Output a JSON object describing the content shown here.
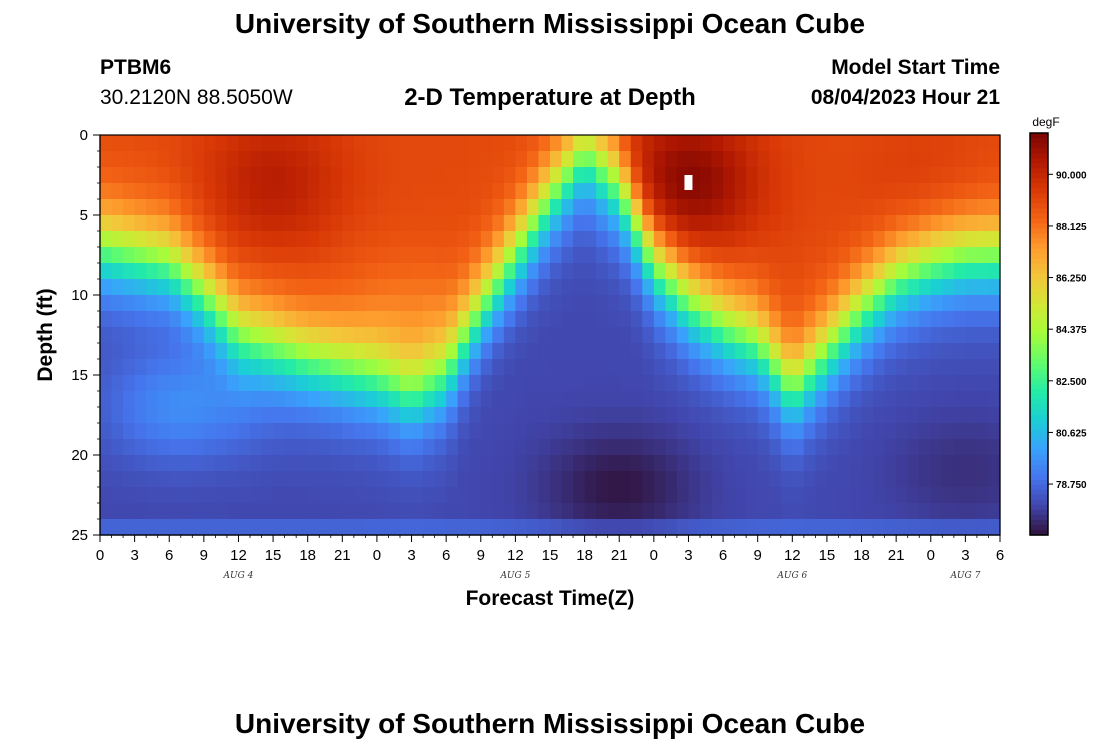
{
  "page": {
    "title": "University of Southern Mississippi Ocean Cube",
    "station": "PTBM6",
    "coordinates": "30.2120N  88.5050W",
    "subtitle": "2-D Temperature at Depth",
    "model_start_label": "Model Start Time",
    "model_start_value": "08/04/2023 Hour 21",
    "footer_title": "University of Southern Mississippi Ocean Cube"
  },
  "chart_data": {
    "type": "heatmap",
    "title": "2-D Temperature at Depth",
    "xlabel": "Forecast Time(Z)",
    "ylabel": "Depth (ft)",
    "x_range_hours": [
      0,
      78
    ],
    "x_ticks": [
      "0",
      "3",
      "6",
      "9",
      "12",
      "15",
      "18",
      "21",
      "0",
      "3",
      "6",
      "9",
      "12",
      "15",
      "18",
      "21",
      "0",
      "3",
      "6",
      "9",
      "12",
      "15",
      "18",
      "21",
      "0",
      "3",
      "6"
    ],
    "x_tick_hours": [
      0,
      3,
      6,
      9,
      12,
      15,
      18,
      21,
      24,
      27,
      30,
      33,
      36,
      39,
      42,
      45,
      48,
      51,
      54,
      57,
      60,
      63,
      66,
      69,
      72,
      75,
      78
    ],
    "date_labels": [
      {
        "label": "AUG 4",
        "hour": 12
      },
      {
        "label": "AUG 5",
        "hour": 36
      },
      {
        "label": "AUG 6",
        "hour": 60
      },
      {
        "label": "AUG 7",
        "hour": 75
      }
    ],
    "y_range_ft": [
      0,
      25
    ],
    "y_ticks": [
      "0",
      "5",
      "10",
      "15",
      "20",
      "25"
    ],
    "y_tick_values": [
      0,
      5,
      10,
      15,
      20,
      25
    ],
    "colorbar": {
      "unit": "degF",
      "range": [
        76.9,
        91.5
      ],
      "ticks": [
        "90.000",
        "88.125",
        "86.250",
        "84.375",
        "82.500",
        "80.625",
        "78.750"
      ],
      "tick_values": [
        90.0,
        88.125,
        86.25,
        84.375,
        82.5,
        80.625,
        78.75
      ],
      "colors": [
        "#30123b",
        "#4145ab",
        "#4675ed",
        "#39a2fc",
        "#1bcfd4",
        "#24eca6",
        "#61fc6c",
        "#a4fc3b",
        "#d1e834",
        "#f3c63a",
        "#fe9b2d",
        "#f36315",
        "#d93806",
        "#b11901",
        "#7a0402"
      ]
    },
    "thermocline_depth_ft_by_hour": [
      {
        "hour": 0,
        "depth_ft": 7
      },
      {
        "hour": 3,
        "depth_ft": 7.5
      },
      {
        "hour": 6,
        "depth_ft": 8
      },
      {
        "hour": 9,
        "depth_ft": 10
      },
      {
        "hour": 12,
        "depth_ft": 12.5
      },
      {
        "hour": 18,
        "depth_ft": 14
      },
      {
        "hour": 24,
        "depth_ft": 15.2
      },
      {
        "hour": 27,
        "depth_ft": 16.2
      },
      {
        "hour": 30,
        "depth_ft": 15
      },
      {
        "hour": 33,
        "depth_ft": 11
      },
      {
        "hour": 36,
        "depth_ft": 7.5
      },
      {
        "hour": 39,
        "depth_ft": 4
      },
      {
        "hour": 42,
        "depth_ft": 1
      },
      {
        "hour": 45,
        "depth_ft": 3
      },
      {
        "hour": 48,
        "depth_ft": 8
      },
      {
        "hour": 51,
        "depth_ft": 10.5
      },
      {
        "hour": 54,
        "depth_ft": 12
      },
      {
        "hour": 57,
        "depth_ft": 13
      },
      {
        "hour": 60,
        "depth_ft": 16
      },
      {
        "hour": 63,
        "depth_ft": 13.5
      },
      {
        "hour": 66,
        "depth_ft": 11
      },
      {
        "hour": 69,
        "depth_ft": 9
      },
      {
        "hour": 72,
        "depth_ft": 8
      },
      {
        "hour": 75,
        "depth_ft": 7.5
      },
      {
        "hour": 78,
        "depth_ft": 7.5
      }
    ],
    "warm_cores": [
      {
        "hour": 15,
        "depth_ft": 3,
        "temp_f": 90.3
      },
      {
        "hour": 27,
        "depth_ft": 12,
        "temp_f": 88.0
      },
      {
        "hour": 51,
        "depth_ft": 3,
        "temp_f": 91.3
      },
      {
        "hour": 72,
        "depth_ft": 4,
        "temp_f": 89.5
      }
    ],
    "cold_cores": [
      {
        "hour": 7,
        "depth_ft": 17,
        "temp_f": 79.5
      },
      {
        "hour": 45,
        "depth_ft": 22,
        "temp_f": 77.0
      },
      {
        "hour": 75,
        "depth_ft": 21,
        "temp_f": 77.5
      }
    ],
    "surface_temp_f": 89.0,
    "bottom_temp_f": 78.0
  }
}
